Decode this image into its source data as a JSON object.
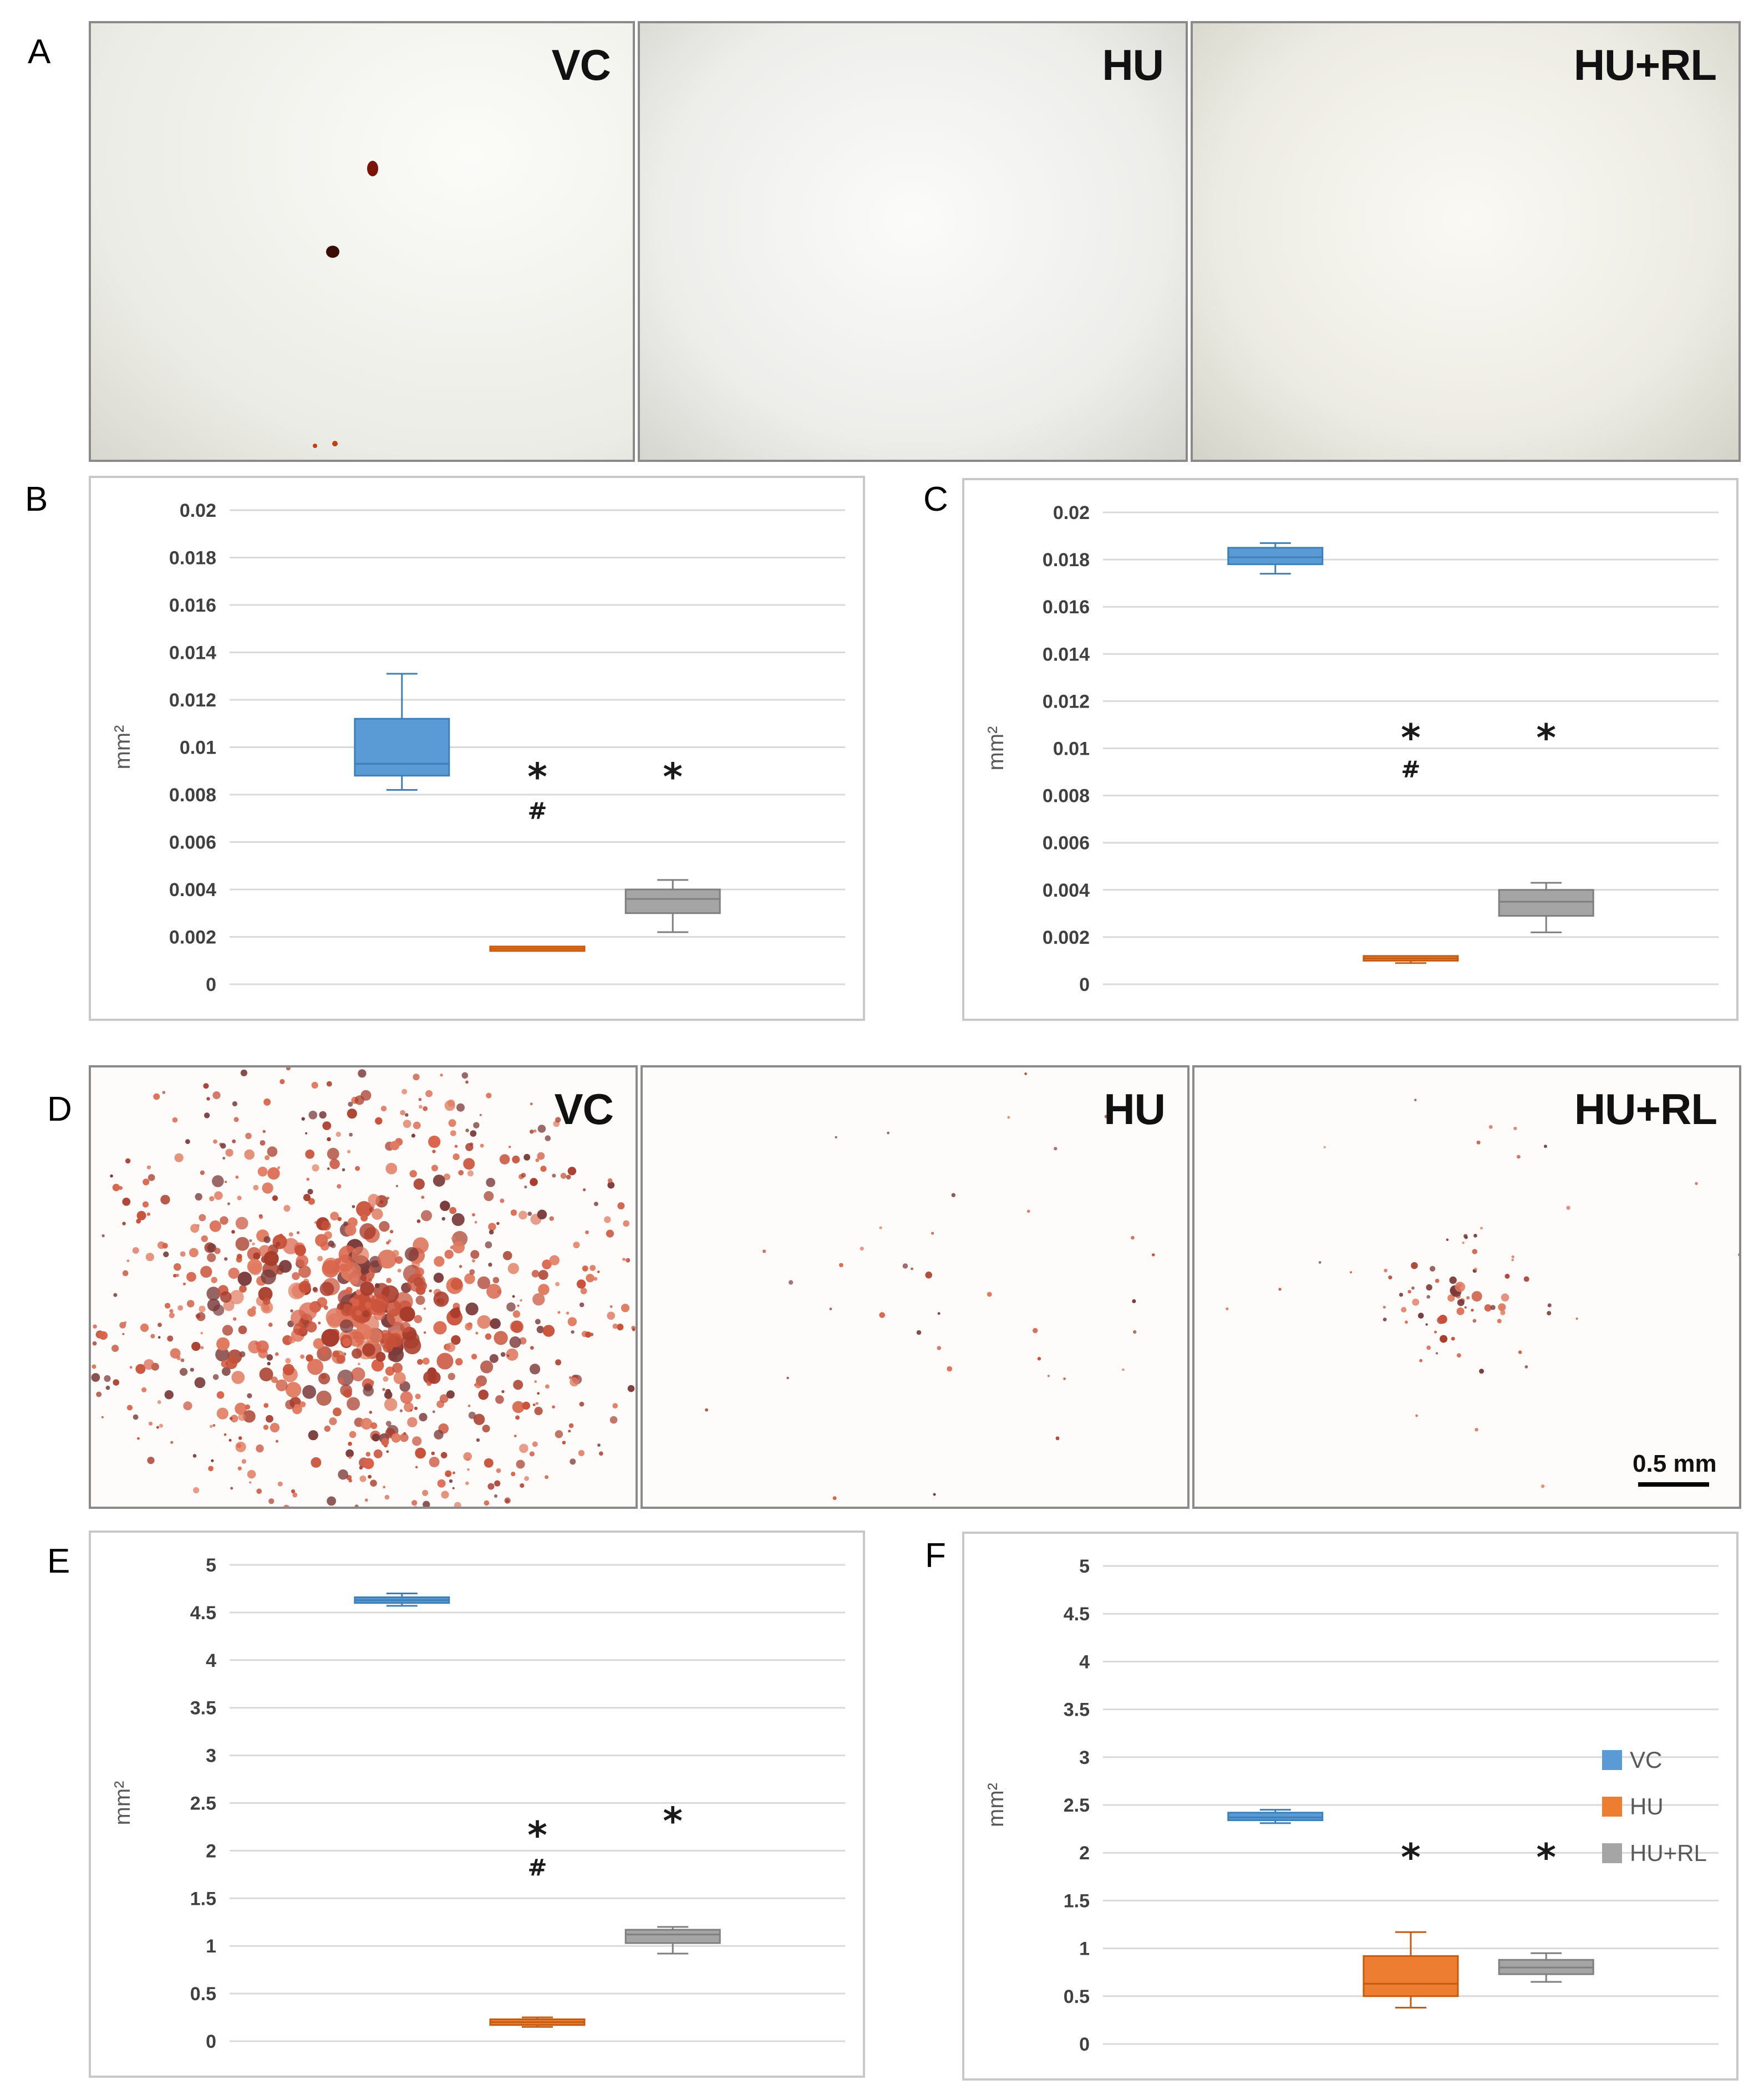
{
  "figure": {
    "panel_labels": [
      "A",
      "B",
      "C",
      "D",
      "E",
      "F"
    ],
    "photo_rows": [
      {
        "panel": "A",
        "group_labels": [
          "VC",
          "HU",
          "HU+RL"
        ]
      },
      {
        "panel": "D",
        "group_labels": [
          "VC",
          "HU",
          "HU+RL"
        ],
        "scale_bar": "0.5 mm"
      }
    ],
    "colors": {
      "VC": "#5b9bd5",
      "HU": "#ed7d31",
      "HU+RL": "#a5a5a5"
    },
    "legend": {
      "placement": "right",
      "entries": [
        "VC",
        "HU",
        "HU+RL"
      ]
    }
  },
  "chart_data": [
    {
      "panel": "B",
      "type": "box",
      "ylabel": "mm²",
      "ylim": [
        0,
        0.02
      ],
      "yticks": [
        "0.02",
        "0.018",
        "0.016",
        "0.014",
        "0.012",
        "0.01",
        "0.008",
        "0.006",
        "0.004",
        "0.002",
        "0"
      ],
      "tick_values": [
        0.02,
        0.018,
        0.016,
        0.014,
        0.012,
        0.01,
        0.008,
        0.006,
        0.004,
        0.002,
        0
      ],
      "grid": true,
      "series": [
        {
          "group": "VC",
          "min": 0.0082,
          "q1": 0.0088,
          "median": 0.0093,
          "q3": 0.0112,
          "max": 0.0131
        },
        {
          "group": "HU",
          "min": 0.0015,
          "q1": 0.0015,
          "median": 0.0015,
          "q3": 0.0015,
          "max": 0.0015
        },
        {
          "group": "HU+RL",
          "min": 0.0022,
          "q1": 0.003,
          "median": 0.0036,
          "q3": 0.004,
          "max": 0.0044
        }
      ],
      "annotations": [
        {
          "group": "HU",
          "text": "*",
          "y": 0.0089
        },
        {
          "group": "HU",
          "text": "#",
          "y": 0.0073
        },
        {
          "group": "HU+RL",
          "text": "*",
          "y": 0.0089
        }
      ]
    },
    {
      "panel": "C",
      "type": "box",
      "ylabel": "mm²",
      "ylim": [
        0,
        0.02
      ],
      "yticks": [
        "0.02",
        "0.018",
        "0.016",
        "0.014",
        "0.012",
        "0.01",
        "0.008",
        "0.006",
        "0.004",
        "0.002",
        "0"
      ],
      "tick_values": [
        0.02,
        0.018,
        0.016,
        0.014,
        0.012,
        0.01,
        0.008,
        0.006,
        0.004,
        0.002,
        0
      ],
      "grid": true,
      "series": [
        {
          "group": "VC",
          "min": 0.0174,
          "q1": 0.0178,
          "median": 0.0181,
          "q3": 0.0185,
          "max": 0.0187
        },
        {
          "group": "HU",
          "min": 0.0009,
          "q1": 0.001,
          "median": 0.0011,
          "q3": 0.0012,
          "max": 0.0012
        },
        {
          "group": "HU+RL",
          "min": 0.0022,
          "q1": 0.0029,
          "median": 0.0035,
          "q3": 0.004,
          "max": 0.0043
        }
      ],
      "annotations": [
        {
          "group": "HU",
          "text": "*",
          "y": 0.0106
        },
        {
          "group": "HU",
          "text": "#",
          "y": 0.0091
        },
        {
          "group": "HU+RL",
          "text": "*",
          "y": 0.0106
        }
      ]
    },
    {
      "panel": "E",
      "type": "box",
      "ylabel": "mm²",
      "ylim": [
        0,
        5
      ],
      "yticks": [
        "5",
        "4.5",
        "4",
        "3.5",
        "3",
        "2.5",
        "2",
        "1.5",
        "1",
        "0.5",
        "0"
      ],
      "tick_values": [
        5,
        4.5,
        4,
        3.5,
        3,
        2.5,
        2,
        1.5,
        1,
        0.5,
        0
      ],
      "grid": true,
      "series": [
        {
          "group": "VC",
          "min": 4.57,
          "q1": 4.6,
          "median": 4.63,
          "q3": 4.66,
          "max": 4.7
        },
        {
          "group": "HU",
          "min": 0.15,
          "q1": 0.17,
          "median": 0.2,
          "q3": 0.23,
          "max": 0.25
        },
        {
          "group": "HU+RL",
          "min": 0.92,
          "q1": 1.03,
          "median": 1.12,
          "q3": 1.17,
          "max": 1.2
        }
      ],
      "annotations": [
        {
          "group": "HU",
          "text": "*",
          "y": 2.2
        },
        {
          "group": "HU",
          "text": "#",
          "y": 1.82
        },
        {
          "group": "HU+RL",
          "text": "*",
          "y": 2.35
        }
      ]
    },
    {
      "panel": "F",
      "type": "box",
      "ylabel": "mm²",
      "ylim": [
        0,
        5
      ],
      "yticks": [
        "5",
        "4.5",
        "4",
        "3.5",
        "3",
        "2.5",
        "2",
        "1.5",
        "1",
        "0.5",
        "0"
      ],
      "tick_values": [
        5,
        4.5,
        4,
        3.5,
        3,
        2.5,
        2,
        1.5,
        1,
        0.5,
        0
      ],
      "grid": true,
      "series": [
        {
          "group": "VC",
          "min": 2.31,
          "q1": 2.34,
          "median": 2.37,
          "q3": 2.42,
          "max": 2.45
        },
        {
          "group": "HU",
          "min": 0.38,
          "q1": 0.5,
          "median": 0.63,
          "q3": 0.92,
          "max": 1.17
        },
        {
          "group": "HU+RL",
          "min": 0.65,
          "q1": 0.73,
          "median": 0.8,
          "q3": 0.88,
          "max": 0.95
        }
      ],
      "annotations": [
        {
          "group": "HU",
          "text": "*",
          "y": 1.99
        },
        {
          "group": "HU+RL",
          "text": "*",
          "y": 1.99
        }
      ]
    }
  ]
}
